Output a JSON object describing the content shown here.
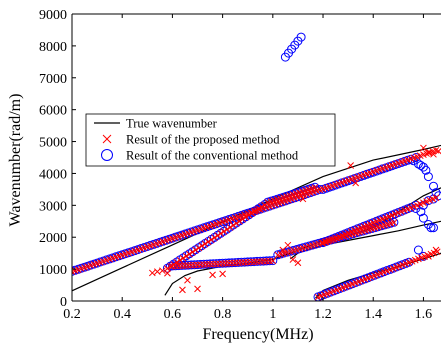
{
  "chart_data": {
    "type": "line",
    "title": "",
    "xlabel": "Frequency(MHz)",
    "ylabel": "Wavenumber(rad/m)",
    "xlim": [
      0.2,
      1.67
    ],
    "ylim": [
      0,
      9000
    ],
    "xticks": [
      0.2,
      0.4,
      0.6,
      0.8,
      1,
      1.2,
      1.4,
      1.6
    ],
    "xtick_labels": [
      "0.2",
      "0.4",
      "0.6",
      "0.8",
      "1",
      "1.2",
      "1.4",
      "1.6"
    ],
    "yticks": [
      0,
      1000,
      2000,
      3000,
      4000,
      5000,
      6000,
      7000,
      8000,
      9000
    ],
    "ytick_labels": [
      "0",
      "1000",
      "2000",
      "3000",
      "4000",
      "5000",
      "6000",
      "7000",
      "8000",
      "9000"
    ],
    "grid": false,
    "legend_position": "upper-left",
    "legend": [
      {
        "name": "True wavenumber",
        "marker": "line"
      },
      {
        "name": "Result of the proposed method",
        "marker": "x"
      },
      {
        "name": "Result of the conventional method",
        "marker": "circle"
      }
    ],
    "colors": {
      "true": "#000000",
      "proposed": "#ff0000",
      "conventional": "#0000ff"
    },
    "series": [
      {
        "style": "line",
        "curves": [
          {
            "x": [
              0.2,
              0.4,
              0.6,
              0.8,
              1.0,
              1.2,
              1.4,
              1.6,
              1.67
            ],
            "y": [
              320,
              1040,
              1760,
              2480,
              3200,
              3900,
              4420,
              4750,
              4880
            ]
          },
          {
            "x": [
              0.57,
              0.6,
              0.65,
              0.7,
              0.8,
              0.9,
              1.0,
              1.1,
              1.2,
              1.3,
              1.4,
              1.5,
              1.6,
              1.67
            ],
            "y": [
              180,
              550,
              800,
              940,
              1090,
              1190,
              1300,
              1590,
              1900,
              2050,
              2300,
              2800,
              3300,
              3550
            ]
          },
          {
            "x": [
              1.07,
              1.1,
              1.15,
              1.2,
              1.3,
              1.4,
              1.5,
              1.6,
              1.67
            ],
            "y": [
              1320,
              1500,
              1650,
              1750,
              1900,
              2050,
              2200,
              2380,
              2500
            ]
          },
          {
            "x": [
              1.17,
              1.2,
              1.3,
              1.4,
              1.5,
              1.6,
              1.67
            ],
            "y": [
              90,
              330,
              650,
              880,
              1080,
              1320,
              1500
            ]
          }
        ]
      },
      {
        "style": "circle",
        "curves": [
          {
            "x_start": 0.2,
            "x_end": 1.19,
            "step": 0.0125,
            "y_start": 930,
            "y_slope": 2600
          },
          {
            "x_start": 1.2,
            "x_end": 1.55,
            "step": 0.0125,
            "y_start": 3500,
            "y_slope": 2700
          },
          {
            "x_start": 0.58,
            "x_end": 0.97,
            "step": 0.0125,
            "y_start": 1030,
            "y_slope": 5150
          },
          {
            "x_start": 0.98,
            "x_end": 1.17,
            "step": 0.0125,
            "y_start": 3100,
            "y_slope": 2500
          },
          {
            "x_start": 1.2,
            "x_end": 1.55,
            "step": 0.0125,
            "y_start": 1830,
            "y_slope": 3150
          },
          {
            "x_start": 0.6,
            "x_end": 1.01,
            "step": 0.0125,
            "y_start": 1100,
            "y_slope": 420
          },
          {
            "x_start": 1.02,
            "x_end": 1.49,
            "step": 0.0125,
            "y_start": 1450,
            "y_slope": 2200
          },
          {
            "x_start": 1.18,
            "x_end": 1.55,
            "step": 0.0125,
            "y_start": 130,
            "y_slope": 3000
          },
          {
            "x_start": 1.05,
            "x_end": 1.115,
            "step": 0.0125,
            "y_start": 7650,
            "y_slope": 10000
          }
        ],
        "extra_points": {
          "x": [
            1.56,
            1.57,
            1.58,
            1.59,
            1.6,
            1.61,
            1.62,
            1.64,
            1.65,
            1.66,
            1.57,
            1.59,
            1.6,
            1.62,
            1.64,
            1.57,
            1.6,
            1.62,
            1.64,
            1.58,
            1.6,
            1.63
          ],
          "y": [
            4400,
            4500,
            4300,
            4250,
            4200,
            4100,
            3900,
            3600,
            3400,
            3300,
            3000,
            2800,
            2600,
            2400,
            2300,
            2900,
            3000,
            3150,
            3200,
            1600,
            1400,
            2300
          ]
        }
      },
      {
        "style": "x",
        "curves": [
          {
            "x_start": 0.2,
            "x_end": 1.19,
            "step": 0.0125,
            "y_start": 920,
            "y_slope": 2600
          },
          {
            "x_start": 1.2,
            "x_end": 1.66,
            "step": 0.0125,
            "y_start": 3510,
            "y_slope": 2700
          },
          {
            "x_start": 0.58,
            "x_end": 0.97,
            "step": 0.0125,
            "y_start": 1020,
            "y_slope": 5150
          },
          {
            "x_start": 0.98,
            "x_end": 1.17,
            "step": 0.0125,
            "y_start": 3090,
            "y_slope": 2500
          },
          {
            "x_start": 1.2,
            "x_end": 1.66,
            "step": 0.0125,
            "y_start": 1820,
            "y_slope": 3150
          },
          {
            "x_start": 0.6,
            "x_end": 1.01,
            "step": 0.0125,
            "y_start": 1090,
            "y_slope": 420
          },
          {
            "x_start": 1.02,
            "x_end": 1.49,
            "step": 0.0125,
            "y_start": 1440,
            "y_slope": 2200
          },
          {
            "x_start": 1.18,
            "x_end": 1.66,
            "step": 0.0125,
            "y_start": 120,
            "y_slope": 3000
          }
        ],
        "extra_points": {
          "x": [
            0.52,
            0.54,
            0.56,
            0.58,
            0.64,
            0.66,
            0.7,
            0.76,
            0.8,
            1.04,
            1.06,
            1.08,
            1.1,
            1.12,
            1.31,
            1.33,
            1.6,
            1.62,
            1.64,
            1.66,
            1.62,
            1.65
          ],
          "y": [
            880,
            920,
            950,
            870,
            350,
            650,
            380,
            820,
            850,
            1600,
            1750,
            1300,
            1200,
            3200,
            4250,
            3700,
            4800,
            4650,
            4600,
            4700,
            1400,
            1600
          ]
        }
      }
    ]
  }
}
